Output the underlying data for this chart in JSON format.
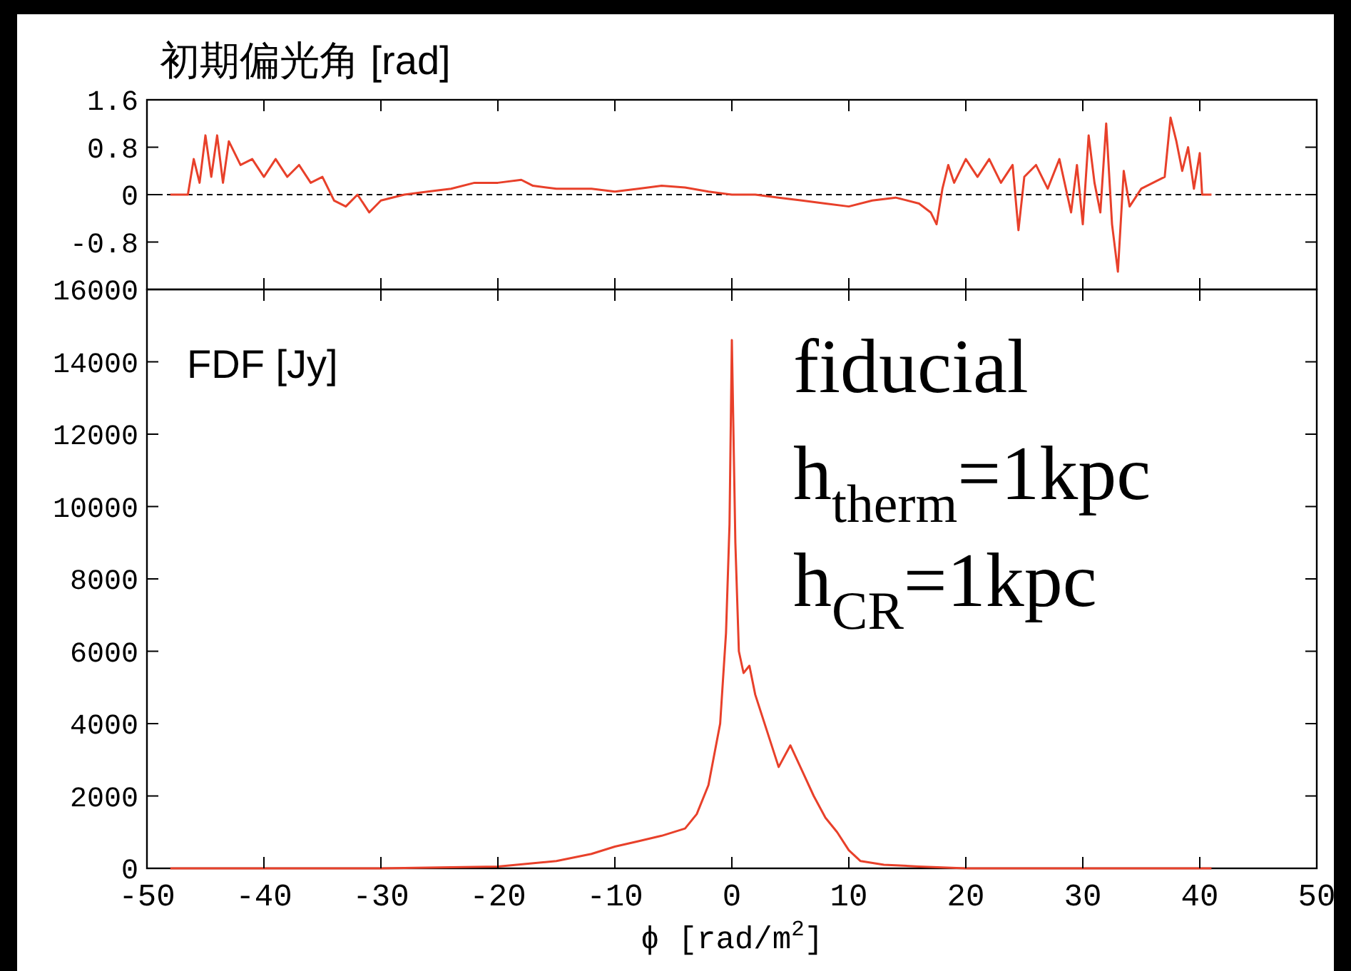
{
  "chart_data": [
    {
      "type": "line",
      "title": "初期偏光角 [rad]",
      "tick_labels": "y",
      "x": [
        -48,
        -46.5,
        -46,
        -45.5,
        -45,
        -44.5,
        -44,
        -43.5,
        -43,
        -42,
        -41,
        -40,
        -39,
        -38,
        -37,
        -36,
        -35,
        -34,
        -33,
        -32,
        -31,
        -30,
        -28,
        -26,
        -24,
        -22,
        -20,
        -18,
        -17,
        -15,
        -12,
        -10,
        -8,
        -6,
        -4,
        -2,
        0,
        2,
        4,
        6,
        8,
        10,
        12,
        14,
        16,
        17,
        17.5,
        18,
        18.5,
        19,
        20,
        21,
        22,
        23,
        24,
        24.5,
        25,
        26,
        27,
        28,
        29,
        29.5,
        30,
        30.5,
        31,
        31.5,
        32,
        32.5,
        33,
        33.5,
        34,
        35,
        36,
        37,
        37.5,
        38,
        38.5,
        39,
        39.5,
        40,
        40.2,
        41
      ],
      "series": [
        {
          "color": "#e8402a",
          "values": [
            0,
            0,
            0.6,
            0.2,
            1.0,
            0.3,
            1.0,
            0.2,
            0.9,
            0.5,
            0.6,
            0.3,
            0.6,
            0.3,
            0.5,
            0.2,
            0.3,
            -0.1,
            -0.2,
            0,
            -0.3,
            -0.1,
            0,
            0.05,
            0.1,
            0.2,
            0.2,
            0.25,
            0.15,
            0.1,
            0.1,
            0.05,
            0.1,
            0.15,
            0.12,
            0.05,
            0,
            0,
            -0.05,
            -0.1,
            -0.15,
            -0.2,
            -0.1,
            -0.05,
            -0.15,
            -0.3,
            -0.5,
            0.1,
            0.5,
            0.2,
            0.6,
            0.3,
            0.6,
            0.2,
            0.5,
            -0.6,
            0.3,
            0.5,
            0.1,
            0.6,
            -0.3,
            0.5,
            -0.5,
            1.0,
            0.2,
            -0.3,
            1.2,
            -0.5,
            -1.3,
            0.4,
            -0.2,
            0.1,
            0.2,
            0.3,
            1.3,
            0.9,
            0.4,
            0.8,
            0.1,
            0.7,
            0,
            0
          ]
        }
      ],
      "xlim": [
        -50,
        50
      ],
      "xticks": [
        -50,
        -40,
        -30,
        -20,
        -10,
        0,
        10,
        20,
        30,
        40,
        50
      ],
      "ylim": [
        -1.6,
        1.6
      ],
      "yticks": [
        -0.8,
        0,
        0.8,
        1.6
      ],
      "ref_lines": [
        {
          "axis": "y",
          "value": 0,
          "color": "#000000",
          "line_style": "dashed"
        }
      ]
    },
    {
      "type": "line",
      "xlabel": "ϕ [rad/m$^{2}$]",
      "x": [
        -48,
        -30,
        -20,
        -15,
        -12,
        -10,
        -8,
        -6,
        -4,
        -3,
        -2,
        -1,
        -0.5,
        -0.2,
        0,
        0.3,
        0.6,
        1,
        1.5,
        2,
        3,
        4,
        5,
        6,
        7,
        8,
        9,
        10,
        11,
        13,
        16,
        20,
        41
      ],
      "series": [
        {
          "color": "#e8402a",
          "values": [
            0,
            0,
            50,
            200,
            400,
            600,
            750,
            900,
            1100,
            1500,
            2300,
            4000,
            6500,
            9500,
            14600,
            9000,
            6000,
            5400,
            5600,
            4800,
            3800,
            2800,
            3400,
            2700,
            2000,
            1400,
            1000,
            500,
            200,
            100,
            50,
            0,
            0
          ]
        }
      ],
      "xlim": [
        -50,
        50
      ],
      "xticks": [
        -50,
        -40,
        -30,
        -20,
        -10,
        0,
        10,
        20,
        30,
        40,
        50
      ],
      "ylim": [
        0,
        16000
      ],
      "yticks": [
        0,
        2000,
        4000,
        6000,
        8000,
        10000,
        12000,
        14000,
        16000
      ],
      "annotations": [
        "FDF [Jy]",
        "fiducial",
        "h$_{therm}$=1kpc",
        "h$_{CR}$=1kpc"
      ]
    }
  ]
}
